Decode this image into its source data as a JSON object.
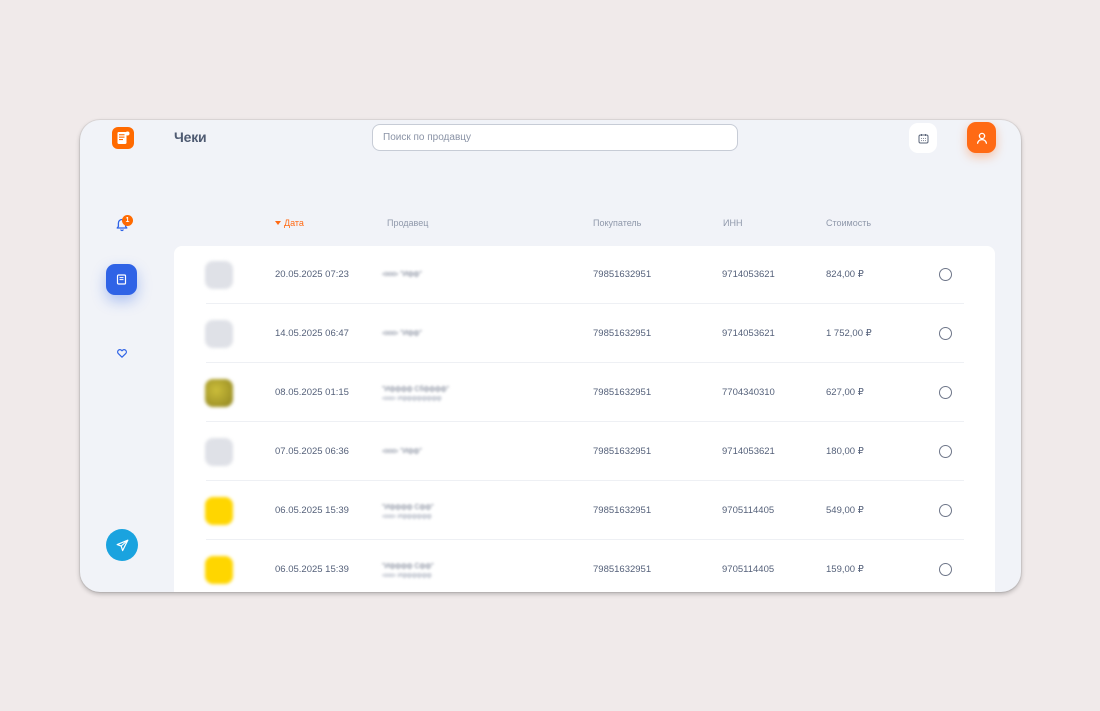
{
  "header": {
    "title": "Чеки",
    "search_placeholder": "Поиск по продавцу",
    "search_value": ""
  },
  "sidebar": {
    "notification_count": "1",
    "items": [
      {
        "name": "notifications",
        "icon": "bell-icon"
      },
      {
        "name": "receipts",
        "icon": "receipt-icon",
        "active": true
      },
      {
        "name": "favorites",
        "icon": "heart-icon"
      },
      {
        "name": "telegram",
        "icon": "paper-plane-icon"
      }
    ]
  },
  "colors": {
    "accent": "#ff6a00",
    "active_nav": "#2f63e6",
    "telegram": "#1aa3df"
  },
  "table": {
    "columns": [
      "Дата",
      "Продавец",
      "Покупатель",
      "ИНН",
      "Стоимость"
    ],
    "sort_column": "Дата",
    "rows": [
      {
        "avatar_color": "#dfe1e7",
        "date": "20.05.2025 07:23",
        "seller_line1": "‹ооо› \"Ифф\"",
        "seller_line2": "",
        "buyer": "79851632951",
        "inn": "9714053621",
        "cost": "824,00 ₽"
      },
      {
        "avatar_color": "#dfe1e7",
        "date": "14.05.2025 06:47",
        "seller_line1": "‹ооо› \"Ифф\"",
        "seller_line2": "",
        "buyer": "79851632951",
        "inn": "9714053621",
        "cost": "1 752,00 ₽"
      },
      {
        "avatar_color": "#b5a72a",
        "date": "08.05.2025 01:15",
        "seller_line1": "\"Ифффф Сбфффф\"",
        "seller_line2": "‹ооо› Ифффффффф",
        "buyer": "79851632951",
        "inn": "7704340310",
        "cost": "627,00 ₽"
      },
      {
        "avatar_color": "#dfe1e7",
        "date": "07.05.2025 06:36",
        "seller_line1": "‹ооо› \"Ифф\"",
        "seller_line2": "",
        "buyer": "79851632951",
        "inn": "9714053621",
        "cost": "180,00 ₽"
      },
      {
        "avatar_color": "#ffd600",
        "date": "06.05.2025 15:39",
        "seller_line1": "\"Ифффф Сфф\"",
        "seller_line2": "‹ооо› Ифффффф",
        "buyer": "79851632951",
        "inn": "9705114405",
        "cost": "549,00 ₽"
      },
      {
        "avatar_color": "#ffd600",
        "date": "06.05.2025 15:39",
        "seller_line1": "\"Ифффф Сфф\"",
        "seller_line2": "‹ооо› Ифффффф",
        "buyer": "79851632951",
        "inn": "9705114405",
        "cost": "159,00 ₽"
      }
    ]
  }
}
